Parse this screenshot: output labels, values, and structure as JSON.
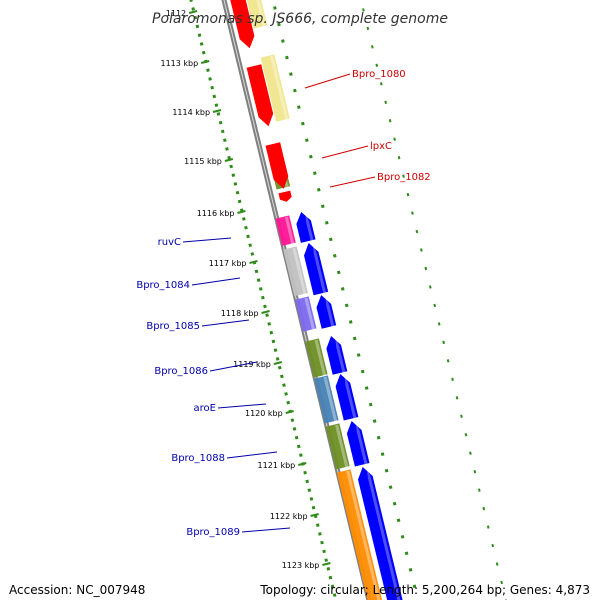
{
  "title": "Polaromonas sp. JS666, complete genome",
  "accession": "Accession: NC_007948",
  "genome_info": "Topology: circular; Length: 5,200,264 bp; Genes: 4,873",
  "ticks": [
    "1112",
    "1113 kbp",
    "1114 kbp",
    "1115 kbp",
    "1116 kbp",
    "1117 kbp",
    "1118 kbp",
    "1119 kbp",
    "1120 kbp",
    "1121 kbp",
    "1122 kbp",
    "1123 kbp"
  ],
  "colors": {
    "backbone": "#808080",
    "grid_dots": "#2e8b1a",
    "forward_label": "#cc0000",
    "reverse_label": "#0000aa"
  },
  "reverse_strand_genes": [
    {
      "label": "Bpro_1080",
      "color": "#ff0000"
    },
    {
      "label": "lpxC",
      "color": "#ff0000"
    },
    {
      "label": "",
      "color": "#ff0000"
    }
  ],
  "forward_strand_genes": [
    {
      "label": "ruvC",
      "color": "#0000ff"
    },
    {
      "label": "Bpro_1084",
      "color": "#0000ff"
    },
    {
      "label": "Bpro_1085",
      "color": "#0000ff"
    },
    {
      "label": "Bpro_1086",
      "color": "#0000ff"
    },
    {
      "label": "aroE",
      "color": "#0000ff"
    },
    {
      "label": "Bpro_1088",
      "color": "#0000ff"
    },
    {
      "label": "Bpro_1089",
      "color": "#0000ff"
    }
  ],
  "cog_blocks": [
    {
      "label": "Bpro_1082",
      "color": "#6b8e23"
    },
    {
      "color": "#f0e68c"
    },
    {
      "color": "#ff1493"
    },
    {
      "color": "#c0c0c0"
    },
    {
      "color": "#7b68ee"
    },
    {
      "color": "#6b8e23"
    },
    {
      "color": "#4682b4"
    },
    {
      "color": "#6b8e23"
    },
    {
      "color": "#ff8c00"
    }
  ]
}
